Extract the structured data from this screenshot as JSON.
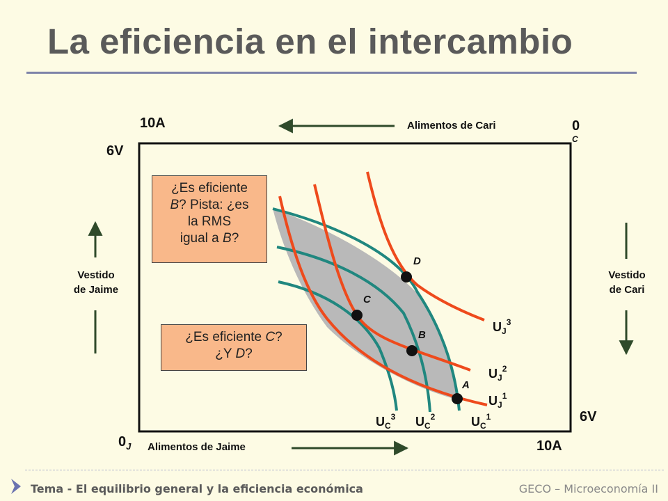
{
  "title": "La eficiencia en el intercambio",
  "axes": {
    "top_left": "10A",
    "left_top": "6V",
    "origin_jaime": "0",
    "origin_jaime_sub": "J",
    "origin_cari": "0",
    "origin_cari_sub": "C",
    "bottom_right": "10A",
    "right_bottom": "6V",
    "alimentos_cari": "Alimentos de Cari",
    "alimentos_jaime": "Alimentos de Jaime",
    "vestido_jaime_1": "Vestido",
    "vestido_jaime_2": "de Jaime",
    "vestido_cari_1": "Vestido",
    "vestido_cari_2": "de Cari"
  },
  "questions": {
    "b_line1": "¿Es eficiente",
    "b_line2_pre": "B",
    "b_line2_post": "? Pista: ¿es",
    "b_line3": "la RMS",
    "b_line4_pre": "igual a ",
    "b_line4_em": "B",
    "b_line4_post": "?",
    "c_line1_pre": "¿Es eficiente ",
    "c_line1_em": "C",
    "c_line1_post": "?",
    "c_line2_pre": "¿Y ",
    "c_line2_em": "D",
    "c_line2_post": "?"
  },
  "points": [
    "A",
    "B",
    "C",
    "D"
  ],
  "curves": {
    "uj3": {
      "base": "U",
      "sub": "J",
      "sup": "3"
    },
    "uj2": {
      "base": "U",
      "sub": "J",
      "sup": "2"
    },
    "uj1": {
      "base": "U",
      "sub": "J",
      "sup": "1"
    },
    "uc3": {
      "base": "U",
      "sub": "C",
      "sup": "3"
    },
    "uc2": {
      "base": "U",
      "sub": "C",
      "sup": "2"
    },
    "uc1": {
      "base": "U",
      "sub": "C",
      "sup": "1"
    }
  },
  "colors": {
    "jaime_curve": "#ee4a1c",
    "cari_curve": "#20877f",
    "lens_fill": "#b9b9b9",
    "arrow": "#2f4a2a",
    "box_fill": "#f9b88a"
  },
  "footer": {
    "left": "Tema - El equilibrio general y la eficiencia económica",
    "right": "GECO – Microeconomía II"
  }
}
